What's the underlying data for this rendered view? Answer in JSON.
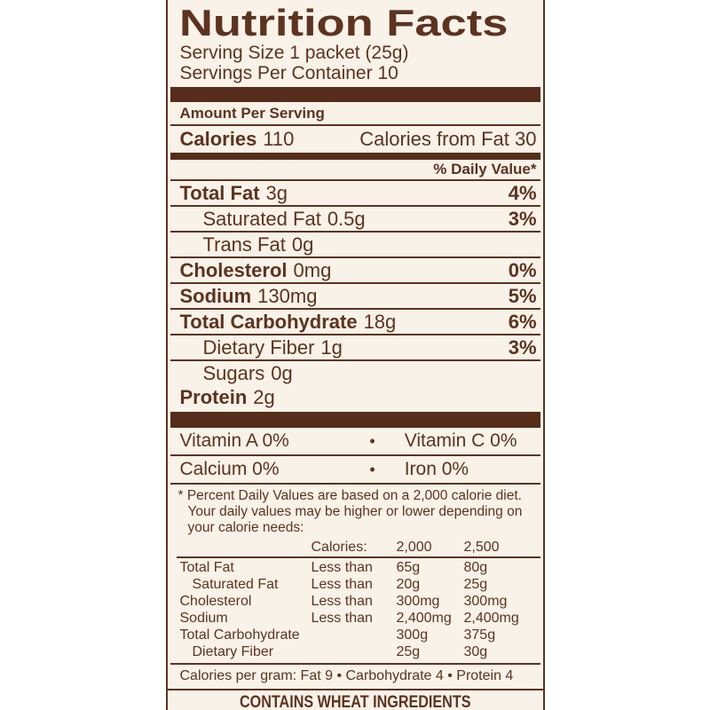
{
  "label": {
    "title": "Nutrition Facts",
    "serving_size": "Serving Size 1 packet (25g)",
    "servings_per_container": "Servings Per Container 10",
    "amount_per_serving": "Amount Per Serving",
    "calories_label": "Calories",
    "calories_value": "110",
    "calories_from_fat": "Calories from Fat 30",
    "daily_value_header": "% Daily Value*",
    "nutrients": [
      {
        "name": "Total Fat",
        "amount": "3g",
        "dv": "4%",
        "bold": true,
        "indent": false
      },
      {
        "name": "Saturated Fat",
        "amount": "0.5g",
        "dv": "3%",
        "bold": false,
        "indent": true
      },
      {
        "name": "Trans Fat",
        "amount": "0g",
        "dv": "",
        "bold": false,
        "indent": true
      },
      {
        "name": "Cholesterol",
        "amount": "0mg",
        "dv": "0%",
        "bold": true,
        "indent": false
      },
      {
        "name": "Sodium",
        "amount": "130mg",
        "dv": "5%",
        "bold": true,
        "indent": false
      },
      {
        "name": "Total Carbohydrate",
        "amount": "18g",
        "dv": "6%",
        "bold": true,
        "indent": false
      },
      {
        "name": "Dietary Fiber",
        "amount": "1g",
        "dv": "3%",
        "bold": false,
        "indent": true
      },
      {
        "name": "Sugars",
        "amount": "0g",
        "dv": "",
        "bold": false,
        "indent": true
      },
      {
        "name": "Protein",
        "amount": "2g",
        "dv": "",
        "bold": true,
        "indent": false
      }
    ],
    "vitamins": [
      {
        "left": "Vitamin A 0%",
        "separator": "•",
        "right": "Vitamin C 0%"
      },
      {
        "left": "Calcium 0%",
        "separator": "•",
        "right": "Iron 0%"
      }
    ],
    "footnote_lines": [
      "* Percent Daily Values are based on a 2,000 calorie diet.",
      "Your daily values may be higher or lower depending on",
      "your calorie needs:"
    ],
    "dv_table": {
      "header": {
        "col2": "Calories:",
        "col3": "2,000",
        "col4": "2,500"
      },
      "rows": [
        {
          "name": "Total Fat",
          "qualifier": "Less than",
          "v2000": "65g",
          "v2500": "80g",
          "indent": false
        },
        {
          "name": "Saturated Fat",
          "qualifier": "Less than",
          "v2000": "20g",
          "v2500": "25g",
          "indent": true
        },
        {
          "name": "Cholesterol",
          "qualifier": "Less than",
          "v2000": "300mg",
          "v2500": "300mg",
          "indent": false
        },
        {
          "name": "Sodium",
          "qualifier": "Less than",
          "v2000": "2,400mg",
          "v2500": "2,400mg",
          "indent": false
        },
        {
          "name": "Total Carbohydrate",
          "qualifier": "",
          "v2000": "300g",
          "v2500": "375g",
          "indent": false
        },
        {
          "name": "Dietary Fiber",
          "qualifier": "",
          "v2000": "25g",
          "v2500": "30g",
          "indent": true
        }
      ]
    },
    "calories_per_gram": "Calories per gram: Fat 9 • Carbohydrate 4 • Protein 4",
    "allergen": "CONTAINS WHEAT INGREDIENTS",
    "colors": {
      "text_brown": "#5d3320",
      "bar_brown": "#552d1a",
      "label_background": "#f8f2e8",
      "page_background": "#ffffff"
    }
  }
}
